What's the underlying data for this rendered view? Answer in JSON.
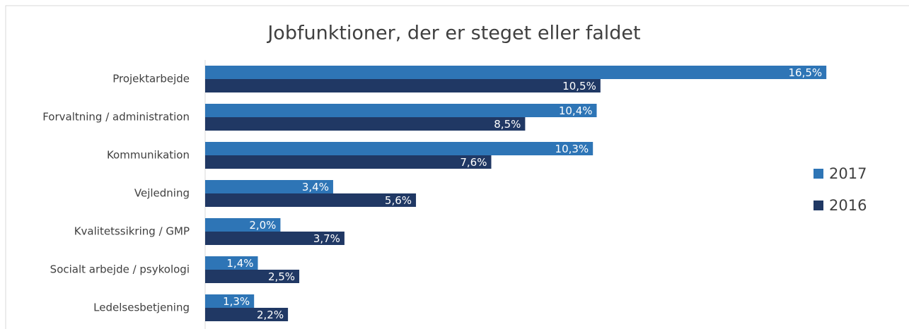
{
  "chart_data": {
    "type": "hbar",
    "title": "Jobfunktioner, der er steget eller faldet",
    "categories": [
      "Projektarbejde",
      "Forvaltning / administration",
      "Kommunikation",
      "Vejledning",
      "Kvalitetssikring / GMP",
      "Socialt arbejde / psykologi",
      "Ledelsesbetjening"
    ],
    "series": [
      {
        "name": "2017",
        "color": "#2e75b6",
        "values": [
          16.5,
          10.4,
          10.3,
          3.4,
          2.0,
          1.4,
          1.3
        ],
        "value_labels": [
          "16,5%",
          "10,4%",
          "10,3%",
          "3,4%",
          "2,0%",
          "1,4%",
          "1,3%"
        ]
      },
      {
        "name": "2016",
        "color": "#203864",
        "values": [
          10.5,
          8.5,
          7.6,
          5.6,
          3.7,
          2.5,
          2.2
        ],
        "value_labels": [
          "10,5%",
          "8,5%",
          "7,6%",
          "5,6%",
          "3,7%",
          "2,5%",
          "2,2%"
        ]
      }
    ],
    "xlim": [
      0,
      18
    ],
    "legend": "right"
  }
}
